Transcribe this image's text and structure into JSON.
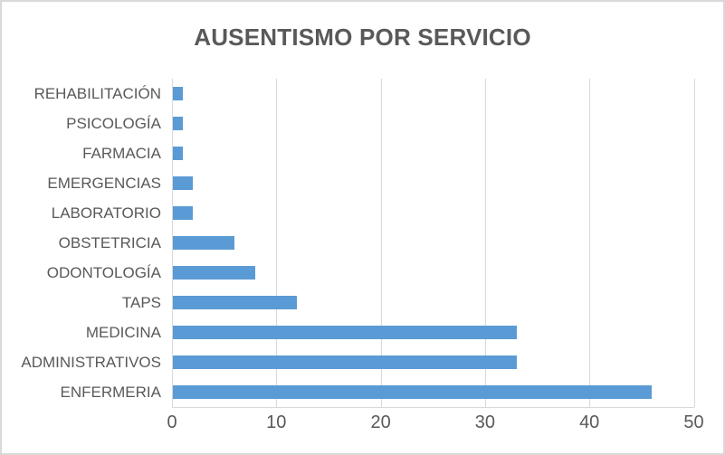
{
  "colors": {
    "bar": "#5b9bd5",
    "text": "#595959",
    "gridline": "#d9d9d9",
    "frame_border": "#d9d9d9",
    "background": "#ffffff"
  },
  "chart_data": {
    "type": "bar",
    "orientation": "horizontal",
    "title": "AUSENTISMO POR SERVICIO",
    "categories": [
      "REHABILITACIÓN",
      "PSICOLOGÍA",
      "FARMACIA",
      "EMERGENCIAS",
      "LABORATORIO",
      "OBSTETRICIA",
      "ODONTOLOGÍA",
      "TAPS",
      "MEDICINA",
      "ADMINISTRATIVOS",
      "ENFERMERIA"
    ],
    "values": [
      1,
      1,
      1,
      2,
      2,
      6,
      8,
      12,
      33,
      33,
      46
    ],
    "xlabel": "",
    "ylabel": "",
    "xlim": [
      0,
      50
    ],
    "xticks": [
      0,
      10,
      20,
      30,
      40,
      50
    ],
    "grid": true,
    "legend": false,
    "data_labels": false
  }
}
